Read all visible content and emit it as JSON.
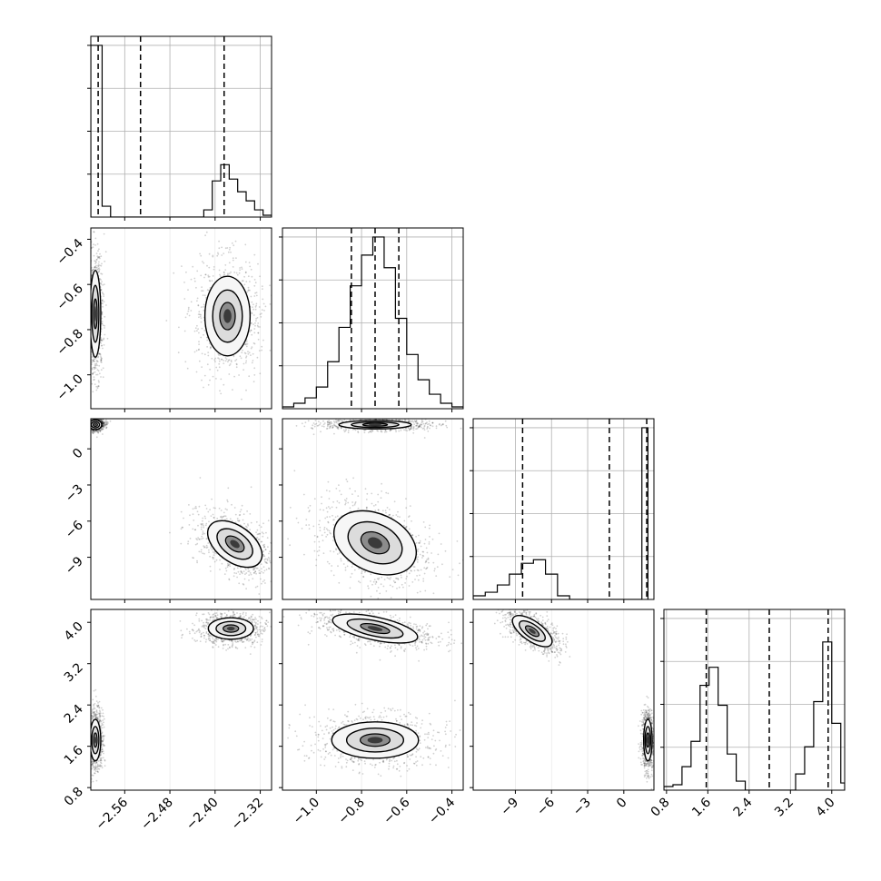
{
  "chart_data": {
    "type": "corner",
    "grid": true,
    "params": [
      {
        "range": [
          -2.62,
          -2.3
        ],
        "ticks": [
          "−2.56",
          "−2.48",
          "−2.40",
          "−2.32"
        ],
        "tick_values": [
          -2.56,
          -2.48,
          -2.4,
          -2.32
        ]
      },
      {
        "range": [
          -1.15,
          -0.35
        ],
        "ticks": [
          "−1.0",
          "−0.8",
          "−0.6",
          "−0.4"
        ],
        "tick_values": [
          -1.0,
          -0.8,
          -0.6,
          -0.4
        ]
      },
      {
        "range": [
          -12.5,
          2.5
        ],
        "ticks": [
          "−9",
          "−6",
          "−3",
          "0"
        ],
        "tick_values": [
          -9,
          -6,
          -3,
          0
        ]
      },
      {
        "range": [
          0.75,
          4.25
        ],
        "ticks": [
          "0.8",
          "1.6",
          "2.4",
          "3.2",
          "4.0"
        ],
        "tick_values": [
          0.8,
          1.6,
          2.4,
          3.2,
          4.0
        ]
      }
    ],
    "histograms": [
      {
        "param": 0,
        "quantile_lines": [
          -2.607,
          -2.532,
          -2.384
        ],
        "bins": [
          {
            "x0": -2.62,
            "x1": -2.6,
            "count": 0.95
          },
          {
            "x0": -2.6,
            "x1": -2.585,
            "count": 0.06
          },
          {
            "x0": -2.585,
            "x1": -2.42,
            "count": 0.0
          },
          {
            "x0": -2.42,
            "x1": -2.405,
            "count": 0.04
          },
          {
            "x0": -2.405,
            "x1": -2.39,
            "count": 0.2
          },
          {
            "x0": -2.39,
            "x1": -2.375,
            "count": 0.29
          },
          {
            "x0": -2.375,
            "x1": -2.36,
            "count": 0.21
          },
          {
            "x0": -2.36,
            "x1": -2.345,
            "count": 0.14
          },
          {
            "x0": -2.345,
            "x1": -2.33,
            "count": 0.09
          },
          {
            "x0": -2.33,
            "x1": -2.315,
            "count": 0.04
          },
          {
            "x0": -2.315,
            "x1": -2.3,
            "count": 0.01
          }
        ]
      },
      {
        "param": 1,
        "quantile_lines": [
          -0.845,
          -0.74,
          -0.635
        ],
        "bins": [
          {
            "x0": -1.15,
            "x1": -1.1,
            "count": 0.01
          },
          {
            "x0": -1.1,
            "x1": -1.05,
            "count": 0.03
          },
          {
            "x0": -1.05,
            "x1": -1.0,
            "count": 0.06
          },
          {
            "x0": -1.0,
            "x1": -0.95,
            "count": 0.12
          },
          {
            "x0": -0.95,
            "x1": -0.9,
            "count": 0.26
          },
          {
            "x0": -0.9,
            "x1": -0.85,
            "count": 0.45
          },
          {
            "x0": -0.85,
            "x1": -0.8,
            "count": 0.68
          },
          {
            "x0": -0.8,
            "x1": -0.75,
            "count": 0.85
          },
          {
            "x0": -0.75,
            "x1": -0.7,
            "count": 0.95
          },
          {
            "x0": -0.7,
            "x1": -0.65,
            "count": 0.78
          },
          {
            "x0": -0.65,
            "x1": -0.6,
            "count": 0.5
          },
          {
            "x0": -0.6,
            "x1": -0.55,
            "count": 0.3
          },
          {
            "x0": -0.55,
            "x1": -0.5,
            "count": 0.16
          },
          {
            "x0": -0.5,
            "x1": -0.45,
            "count": 0.08
          },
          {
            "x0": -0.45,
            "x1": -0.4,
            "count": 0.03
          },
          {
            "x0": -0.4,
            "x1": -0.35,
            "count": 0.01
          }
        ]
      },
      {
        "param": 2,
        "quantile_lines": [
          -8.4,
          -1.2,
          1.9
        ],
        "bins": [
          {
            "x0": -12.5,
            "x1": -11.5,
            "count": 0.02
          },
          {
            "x0": -11.5,
            "x1": -10.5,
            "count": 0.04
          },
          {
            "x0": -10.5,
            "x1": -9.5,
            "count": 0.08
          },
          {
            "x0": -9.5,
            "x1": -8.5,
            "count": 0.14
          },
          {
            "x0": -8.5,
            "x1": -7.5,
            "count": 0.2
          },
          {
            "x0": -7.5,
            "x1": -6.5,
            "count": 0.22
          },
          {
            "x0": -6.5,
            "x1": -5.5,
            "count": 0.14
          },
          {
            "x0": -5.5,
            "x1": -4.5,
            "count": 0.02
          },
          {
            "x0": -4.5,
            "x1": 1.5,
            "count": 0.0
          },
          {
            "x0": 1.5,
            "x1": 2.0,
            "count": 0.95
          }
        ]
      },
      {
        "param": 3,
        "quantile_lines": [
          1.57,
          2.79,
          3.93
        ],
        "bins": [
          {
            "x0": 0.75,
            "x1": 0.925,
            "count": 0.02
          },
          {
            "x0": 0.925,
            "x1": 1.1,
            "count": 0.03
          },
          {
            "x0": 1.1,
            "x1": 1.275,
            "count": 0.13
          },
          {
            "x0": 1.275,
            "x1": 1.45,
            "count": 0.27
          },
          {
            "x0": 1.45,
            "x1": 1.625,
            "count": 0.58
          },
          {
            "x0": 1.625,
            "x1": 1.8,
            "count": 0.68
          },
          {
            "x0": 1.8,
            "x1": 1.975,
            "count": 0.47
          },
          {
            "x0": 1.975,
            "x1": 2.15,
            "count": 0.2
          },
          {
            "x0": 2.15,
            "x1": 2.325,
            "count": 0.05
          },
          {
            "x0": 2.325,
            "x1": 3.3,
            "count": 0.0
          },
          {
            "x0": 3.3,
            "x1": 3.475,
            "count": 0.09
          },
          {
            "x0": 3.475,
            "x1": 3.65,
            "count": 0.24
          },
          {
            "x0": 3.65,
            "x1": 3.825,
            "count": 0.49
          },
          {
            "x0": 3.825,
            "x1": 4.0,
            "count": 0.82
          },
          {
            "x0": 4.0,
            "x1": 4.175,
            "count": 0.37
          },
          {
            "x0": 4.175,
            "x1": 4.25,
            "count": 0.04
          }
        ]
      }
    ],
    "joint_plots": [
      {
        "x_param": 0,
        "y_param": 1,
        "clusters": [
          {
            "cx": -2.612,
            "cy": -0.73,
            "sx": 0.006,
            "sy": 0.12,
            "rot": 0
          },
          {
            "cx": -2.378,
            "cy": -0.74,
            "sx": 0.025,
            "sy": 0.11,
            "rot": 0
          }
        ]
      },
      {
        "x_param": 0,
        "y_param": 2,
        "clusters": [
          {
            "cx": -2.612,
            "cy": 2.0,
            "sx": 0.007,
            "sy": 0.25,
            "rot": 0
          },
          {
            "cx": -2.365,
            "cy": -7.9,
            "sx": 0.02,
            "sy": 1.6,
            "rot": -54
          }
        ]
      },
      {
        "x_param": 0,
        "y_param": 3,
        "clusters": [
          {
            "cx": -2.612,
            "cy": 1.72,
            "sx": 0.006,
            "sy": 0.25,
            "rot": 0
          },
          {
            "cx": -2.372,
            "cy": 3.88,
            "sx": 0.025,
            "sy": 0.13,
            "rot": 0
          }
        ]
      },
      {
        "x_param": 1,
        "y_param": 2,
        "clusters": [
          {
            "cx": -0.74,
            "cy": 2.0,
            "sx": 0.1,
            "sy": 0.22,
            "rot": 0
          },
          {
            "cx": -0.74,
            "cy": -7.8,
            "sx": 0.12,
            "sy": 1.5,
            "rot": 25
          }
        ]
      },
      {
        "x_param": 1,
        "y_param": 3,
        "clusters": [
          {
            "cx": -0.74,
            "cy": 3.88,
            "sx": 0.12,
            "sy": 0.14,
            "rot": 12
          },
          {
            "cx": -0.74,
            "cy": 1.72,
            "sx": 0.12,
            "sy": 0.22,
            "rot": 0
          }
        ]
      },
      {
        "x_param": 2,
        "y_param": 3,
        "clusters": [
          {
            "cx": -7.6,
            "cy": 3.83,
            "sx": 1.2,
            "sy": 0.12,
            "rot": 35
          },
          {
            "cx": 2.0,
            "cy": 1.72,
            "sx": 0.22,
            "sy": 0.25,
            "rot": 0
          }
        ]
      }
    ]
  }
}
